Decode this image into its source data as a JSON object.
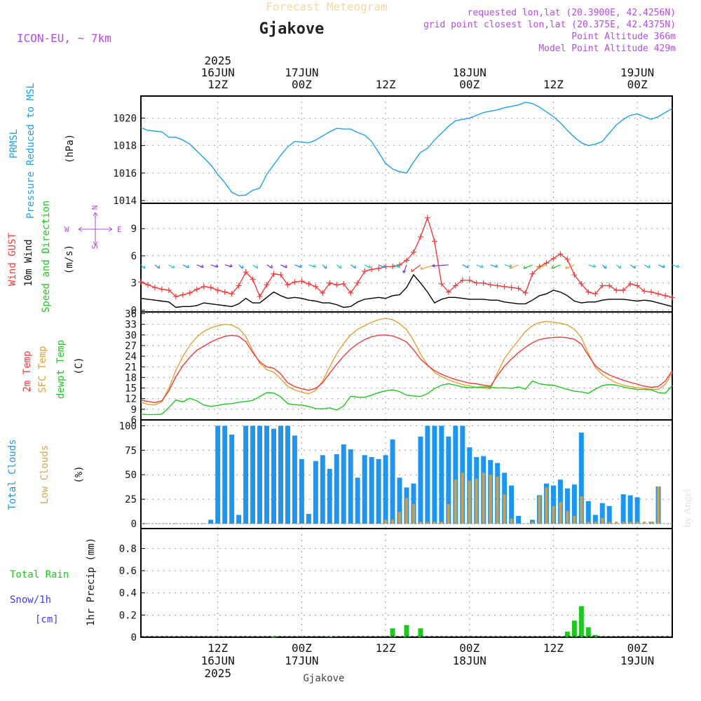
{
  "header": {
    "top_title": "Forecast Meteogram",
    "location": "Gjakove",
    "model": "ICON-EU, ~ 7km",
    "requested": "requested lon,lat (20.3900E, 42.4256N)",
    "grid_point": "grid point closest lon,lat (20.375E, 42.4375N)",
    "point_alt": "Point Altitude 366m",
    "model_alt": "Model Point Altitude 429m",
    "footer_location": "Gjakove",
    "watermark": "by Angel"
  },
  "time_axis": {
    "ticks": [
      {
        "label": "12Z",
        "date": "16JUN",
        "year": "2025",
        "hour": 12
      },
      {
        "label": "00Z",
        "date": "17JUN",
        "year": "",
        "hour": 24
      },
      {
        "label": "12Z",
        "date": "",
        "year": "",
        "hour": 36
      },
      {
        "label": "00Z",
        "date": "18JUN",
        "year": "",
        "hour": 48
      },
      {
        "label": "12Z",
        "date": "",
        "year": "",
        "hour": 60
      },
      {
        "label": "00Z",
        "date": "19JUN",
        "year": "",
        "hour": 72
      }
    ],
    "start_hour": 1,
    "end_hour": 77
  },
  "colors": {
    "pressure": "#1ea0f0",
    "gust": "#f03c3c",
    "wind": "#000000",
    "temp2m": "#f03c3c",
    "sfctemp": "#e6a032",
    "dewpt": "#1ec81e",
    "total_clouds": "#1e96f0",
    "low_clouds": "#c8a050",
    "rain": "#1ec81e",
    "snow": "#3c3cf0",
    "purple": "#b44ce6"
  },
  "panels": {
    "pressure": {
      "label1": "PRMSL",
      "label2": "Pressure Reduced to MSL",
      "unit": "(hPa)",
      "yticks": [
        "1014",
        "1016",
        "1018",
        "1020"
      ]
    },
    "wind": {
      "label_gust": "Wind GUST",
      "label_wind": "10m Wind",
      "label_dir": "Speed and Direction",
      "unit": "(m/s)",
      "compass_n": "N",
      "compass_s": "S",
      "compass_w": "W",
      "compass_e": "E",
      "yticks": [
        "0",
        "3",
        "6",
        "9"
      ]
    },
    "temp": {
      "label_t2m": "2m Temp",
      "label_sfc": "SFC Temp",
      "label_dew": "dewpt Temp",
      "unit": "(C)",
      "yticks": [
        "6",
        "9",
        "12",
        "15",
        "18",
        "21",
        "24",
        "27",
        "30",
        "33",
        "36"
      ]
    },
    "clouds": {
      "label_total": "Total Clouds",
      "label_low": "Low Clouds",
      "unit": "(%)",
      "yticks": [
        "0",
        "25",
        "50",
        "75",
        "100"
      ]
    },
    "precip": {
      "label_rain": "Total  Rain",
      "label_snow": "Snow/1h",
      "label_cm": "[cm]",
      "label_axis": "1hr Precip (mm)",
      "yticks": [
        "0",
        "0.2",
        "0.4",
        "0.6",
        "0.8"
      ]
    }
  },
  "chart_data": [
    {
      "type": "line",
      "name": "PRMSL",
      "ylabel": "(hPa)",
      "ylim": [
        1013.8,
        1021.6
      ],
      "x": [
        1,
        2,
        3,
        4,
        5,
        6,
        7,
        8,
        9,
        10,
        11,
        12,
        13,
        14,
        15,
        16,
        17,
        18,
        19,
        20,
        21,
        22,
        23,
        24,
        25,
        26,
        27,
        28,
        29,
        30,
        31,
        32,
        33,
        34,
        35,
        36,
        37,
        38,
        39,
        40,
        41,
        42,
        43,
        44,
        45,
        46,
        47,
        48,
        49,
        50,
        51,
        52,
        53,
        54,
        55,
        56,
        57,
        58,
        59,
        60,
        61,
        62,
        63,
        64,
        65,
        66,
        67,
        68,
        69,
        70,
        71,
        72,
        73,
        74,
        75,
        76,
        77
      ],
      "y": [
        1019.3,
        1019.1,
        1019.05,
        1019.0,
        1018.6,
        1018.6,
        1018.4,
        1018.1,
        1017.6,
        1017.1,
        1016.6,
        1015.9,
        1015.3,
        1014.6,
        1014.35,
        1014.4,
        1014.75,
        1014.9,
        1015.9,
        1016.6,
        1017.3,
        1017.9,
        1018.3,
        1018.25,
        1018.2,
        1018.4,
        1018.7,
        1019.0,
        1019.25,
        1019.2,
        1019.2,
        1018.95,
        1018.75,
        1018.3,
        1017.5,
        1016.7,
        1016.3,
        1016.1,
        1016.0,
        1016.8,
        1017.5,
        1017.8,
        1018.4,
        1018.9,
        1019.4,
        1019.8,
        1019.9,
        1020.0,
        1020.2,
        1020.4,
        1020.5,
        1020.6,
        1020.75,
        1020.85,
        1020.95,
        1021.15,
        1021.05,
        1020.8,
        1020.45,
        1020.1,
        1019.65,
        1019.1,
        1018.6,
        1018.2,
        1018.0,
        1018.1,
        1018.3,
        1018.9,
        1019.5,
        1019.9,
        1020.2,
        1020.3,
        1020.1,
        1019.9,
        1020.1,
        1020.4,
        1020.7
      ]
    },
    {
      "type": "line",
      "name": "Wind GUST / 10m Wind",
      "ylabel": "(m/s)",
      "ylim": [
        -0.2,
        11.8
      ],
      "x": [
        1,
        2,
        3,
        4,
        5,
        6,
        7,
        8,
        9,
        10,
        11,
        12,
        13,
        14,
        15,
        16,
        17,
        18,
        19,
        20,
        21,
        22,
        23,
        24,
        25,
        26,
        27,
        28,
        29,
        30,
        31,
        32,
        33,
        34,
        35,
        36,
        37,
        38,
        39,
        40,
        41,
        42,
        43,
        44,
        45,
        46,
        47,
        48,
        49,
        50,
        51,
        52,
        53,
        54,
        55,
        56,
        57,
        58,
        59,
        60,
        61,
        62,
        63,
        64,
        65,
        66,
        67,
        68,
        69,
        70,
        71,
        72,
        73,
        74,
        75,
        76,
        77
      ],
      "series": [
        {
          "name": "Wind GUST",
          "values": [
            3.1,
            2.8,
            2.5,
            2.3,
            2.2,
            1.5,
            1.7,
            1.9,
            2.3,
            2.6,
            2.5,
            2.2,
            2.0,
            1.8,
            2.7,
            4.2,
            3.4,
            1.5,
            2.8,
            4.0,
            3.9,
            2.8,
            3.1,
            3.2,
            2.9,
            2.6,
            1.9,
            3.0,
            2.8,
            2.9,
            1.9,
            3.0,
            4.3,
            4.5,
            4.6,
            4.8,
            4.8,
            5.0,
            5.5,
            6.4,
            8.1,
            10.2,
            7.6,
            2.9,
            2.0,
            2.7,
            3.3,
            3.3,
            3.0,
            3.0,
            2.8,
            2.7,
            2.6,
            2.5,
            2.4,
            1.9,
            4.0,
            4.8,
            5.2,
            5.7,
            6.2,
            5.6,
            3.9,
            2.9,
            2.0,
            1.8,
            2.7,
            2.7,
            2.2,
            2.2,
            2.9,
            2.7,
            2.1,
            2.0,
            1.8,
            1.6,
            1.4
          ]
        },
        {
          "name": "10m Wind",
          "values": [
            1.3,
            1.2,
            1.1,
            1.0,
            0.9,
            0.3,
            0.4,
            0.4,
            0.5,
            0.8,
            0.7,
            0.6,
            0.5,
            0.4,
            0.7,
            1.3,
            0.8,
            0.8,
            1.4,
            2.0,
            1.6,
            1.3,
            1.4,
            1.3,
            1.1,
            1.0,
            0.8,
            0.8,
            0.6,
            0.3,
            0.4,
            0.9,
            1.2,
            1.3,
            1.4,
            1.3,
            1.6,
            1.7,
            2.5,
            3.9,
            3.0,
            2.0,
            0.8,
            1.2,
            1.4,
            1.4,
            1.3,
            1.2,
            1.2,
            1.2,
            1.1,
            1.1,
            0.9,
            0.8,
            0.7,
            0.7,
            1.1,
            1.6,
            1.8,
            2.2,
            2.0,
            1.6,
            1.0,
            0.8,
            0.9,
            0.9,
            1.1,
            1.2,
            1.2,
            1.2,
            1.1,
            1.0,
            1.1,
            1.0,
            0.8,
            0.6,
            0.4
          ]
        }
      ]
    },
    {
      "type": "line",
      "name": "Temperature",
      "ylabel": "(C)",
      "ylim": [
        6,
        36.5
      ],
      "x": [
        1,
        2,
        3,
        4,
        5,
        6,
        7,
        8,
        9,
        10,
        11,
        12,
        13,
        14,
        15,
        16,
        17,
        18,
        19,
        20,
        21,
        22,
        23,
        24,
        25,
        26,
        27,
        28,
        29,
        30,
        31,
        32,
        33,
        34,
        35,
        36,
        37,
        38,
        39,
        40,
        41,
        42,
        43,
        44,
        45,
        46,
        47,
        48,
        49,
        50,
        51,
        52,
        53,
        54,
        55,
        56,
        57,
        58,
        59,
        60,
        61,
        62,
        63,
        64,
        65,
        66,
        67,
        68,
        69,
        70,
        71,
        72,
        73,
        74,
        75,
        76,
        77
      ],
      "series": [
        {
          "name": "2m Temp",
          "values": [
            11.6,
            11.2,
            10.9,
            11.4,
            14.2,
            18.2,
            21.3,
            23.7,
            25.7,
            26.8,
            28.0,
            28.9,
            29.6,
            29.9,
            29.6,
            28.1,
            25.0,
            22.4,
            21.0,
            20.6,
            19.0,
            16.5,
            15.4,
            14.8,
            14.4,
            14.9,
            16.5,
            19.2,
            21.7,
            24.0,
            26.0,
            27.5,
            28.7,
            29.5,
            29.9,
            30.0,
            29.7,
            29.0,
            28.0,
            25.8,
            23.2,
            21.4,
            19.9,
            18.9,
            18.1,
            17.4,
            16.9,
            16.4,
            16.2,
            15.8,
            15.5,
            18.5,
            21.2,
            23.2,
            25.0,
            26.5,
            27.8,
            28.7,
            29.1,
            29.3,
            29.4,
            29.2,
            28.8,
            27.4,
            24.2,
            21.3,
            19.8,
            18.7,
            17.9,
            17.2,
            16.6,
            16.1,
            15.5,
            15.2,
            15.4,
            17.0,
            19.9
          ]
        },
        {
          "name": "SFC Temp",
          "values": [
            11.0,
            10.4,
            10.2,
            11.1,
            15.0,
            20.0,
            23.9,
            27.1,
            29.4,
            31.0,
            32.0,
            32.6,
            33.0,
            32.8,
            31.8,
            29.6,
            25.5,
            22.0,
            20.2,
            19.5,
            17.6,
            15.5,
            14.5,
            13.8,
            13.4,
            14.3,
            17.0,
            21.0,
            24.7,
            27.6,
            30.0,
            31.6,
            32.6,
            33.6,
            34.3,
            34.7,
            34.3,
            33.2,
            31.5,
            28.4,
            24.6,
            21.6,
            19.4,
            18.2,
            17.3,
            16.6,
            16.0,
            15.6,
            15.2,
            15.0,
            14.8,
            19.3,
            23.3,
            26.0,
            28.5,
            31.0,
            32.6,
            33.5,
            33.8,
            33.6,
            33.3,
            32.8,
            31.6,
            29.3,
            24.8,
            20.8,
            18.8,
            17.5,
            16.5,
            15.8,
            15.4,
            15.1,
            14.9,
            14.6,
            14.6,
            16.0,
            19.4
          ]
        },
        {
          "name": "dewpt Temp",
          "values": [
            7.6,
            7.5,
            7.5,
            7.6,
            9.5,
            11.6,
            11.1,
            12.1,
            11.4,
            10.2,
            9.8,
            10.1,
            10.5,
            10.6,
            11.0,
            11.2,
            11.5,
            12.6,
            13.7,
            13.6,
            12.5,
            10.6,
            10.3,
            10.2,
            9.8,
            9.2,
            9.1,
            9.4,
            8.8,
            9.9,
            12.7,
            12.4,
            12.4,
            13.0,
            13.7,
            14.2,
            14.5,
            14.0,
            13.0,
            12.8,
            12.6,
            13.4,
            14.9,
            15.8,
            16.2,
            15.8,
            15.3,
            15.1,
            15.2,
            15.3,
            15.2,
            15.0,
            15.1,
            14.9,
            15.3,
            14.7,
            17.0,
            16.2,
            15.9,
            15.8,
            15.2,
            14.6,
            14.1,
            13.9,
            13.5,
            14.7,
            15.7,
            16.0,
            15.8,
            15.3,
            14.9,
            14.6,
            14.6,
            14.5,
            13.7,
            13.5,
            15.7
          ]
        }
      ]
    },
    {
      "type": "bar",
      "name": "Clouds",
      "ylabel": "(%)",
      "ylim": [
        -5,
        106
      ],
      "x": [
        8,
        9,
        10,
        11,
        12,
        13,
        14,
        15,
        16,
        17,
        18,
        19,
        20,
        21,
        22,
        23,
        24,
        25,
        26,
        27,
        28,
        29,
        30,
        31,
        32,
        33,
        34,
        35,
        36,
        37,
        38,
        39,
        40,
        41,
        42,
        43,
        44,
        45,
        46,
        47,
        48,
        49,
        50,
        51,
        52,
        53,
        54,
        55,
        56,
        57,
        58,
        59,
        60,
        61,
        62,
        63,
        64,
        65,
        66,
        67,
        68,
        69,
        70,
        71,
        72,
        73,
        74,
        75
      ],
      "series": [
        {
          "name": "Total Clouds",
          "values": [
            0,
            0,
            0,
            4,
            100,
            100,
            91,
            9,
            100,
            100,
            100,
            100,
            97,
            100,
            100,
            90,
            66,
            10,
            64,
            70,
            56,
            71,
            81,
            76,
            47,
            70,
            68,
            66,
            70,
            86,
            47,
            37,
            41,
            89,
            100,
            100,
            100,
            89,
            100,
            100,
            78,
            68,
            69,
            65,
            62,
            52,
            39,
            8,
            0,
            4,
            29,
            41,
            39,
            45,
            36,
            40,
            93,
            23,
            9,
            21,
            18,
            0,
            30,
            29,
            27,
            0,
            2,
            38
          ]
        },
        {
          "name": "Low Clouds",
          "values": [
            0,
            0,
            0,
            0,
            0,
            0,
            0,
            0,
            0,
            0,
            0,
            0,
            0,
            0,
            0,
            0,
            0,
            0,
            0,
            0,
            0,
            0,
            0,
            0,
            0,
            0,
            0,
            0,
            4,
            4,
            12,
            26,
            20,
            2,
            2,
            2,
            2,
            20,
            45,
            52,
            44,
            46,
            52,
            50,
            48,
            30,
            5,
            0,
            0,
            2,
            28,
            37,
            18,
            22,
            13,
            8,
            28,
            2,
            2,
            6,
            2,
            2,
            2,
            2,
            2,
            2,
            2,
            38
          ]
        }
      ]
    },
    {
      "type": "bar",
      "name": "Total Rain",
      "ylabel": "1hr Precip (mm)",
      "ylim": [
        0,
        0.98
      ],
      "x": [
        20,
        28,
        37,
        39,
        41,
        62,
        63,
        64,
        65,
        66
      ],
      "values": [
        0.003,
        0.006,
        0.08,
        0.11,
        0.08,
        0.05,
        0.15,
        0.28,
        0.09,
        0.02
      ]
    }
  ]
}
